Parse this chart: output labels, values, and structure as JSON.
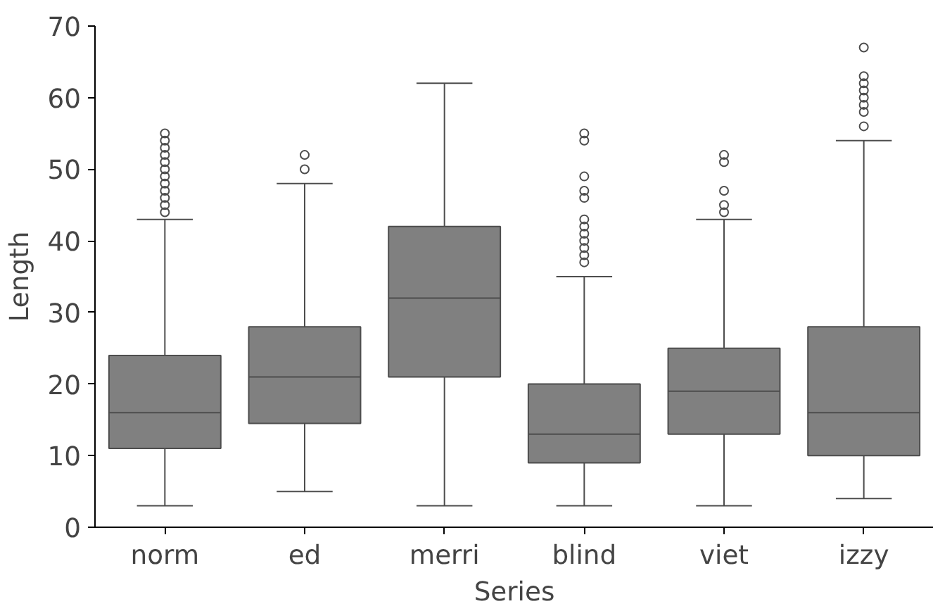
{
  "chart_data": {
    "type": "box",
    "xlabel": "Series",
    "ylabel": "Length",
    "categories": [
      "norm",
      "ed",
      "merri",
      "blind",
      "viet",
      "izzy"
    ],
    "color": "#808080",
    "ylim": [
      0,
      70
    ],
    "yticks": [
      0,
      10,
      20,
      30,
      40,
      50,
      60,
      70
    ],
    "grid": false,
    "boxes": [
      {
        "low": 3,
        "q1": 11,
        "median": 16,
        "q3": 24,
        "high": 43,
        "outliers": [
          44,
          45,
          46,
          47,
          48,
          49,
          50,
          51,
          52,
          53,
          54,
          55
        ]
      },
      {
        "low": 5,
        "q1": 14.5,
        "median": 21,
        "q3": 28,
        "high": 48,
        "outliers": [
          50,
          52
        ]
      },
      {
        "low": 3,
        "q1": 21,
        "median": 32,
        "q3": 42,
        "high": 62
      },
      {
        "low": 3,
        "q1": 9,
        "median": 13,
        "q3": 20,
        "high": 35,
        "outliers": [
          37,
          38,
          39,
          40,
          41,
          42,
          43,
          46,
          47,
          49,
          54,
          55
        ]
      },
      {
        "low": 3,
        "q1": 13,
        "median": 19,
        "q3": 25,
        "high": 43,
        "outliers": [
          44,
          45,
          47,
          51,
          52
        ]
      },
      {
        "low": 4,
        "q1": 10,
        "median": 16,
        "q3": 28,
        "high": 54,
        "outliers": [
          56,
          58,
          59,
          60,
          61,
          62,
          63,
          67
        ]
      }
    ]
  }
}
